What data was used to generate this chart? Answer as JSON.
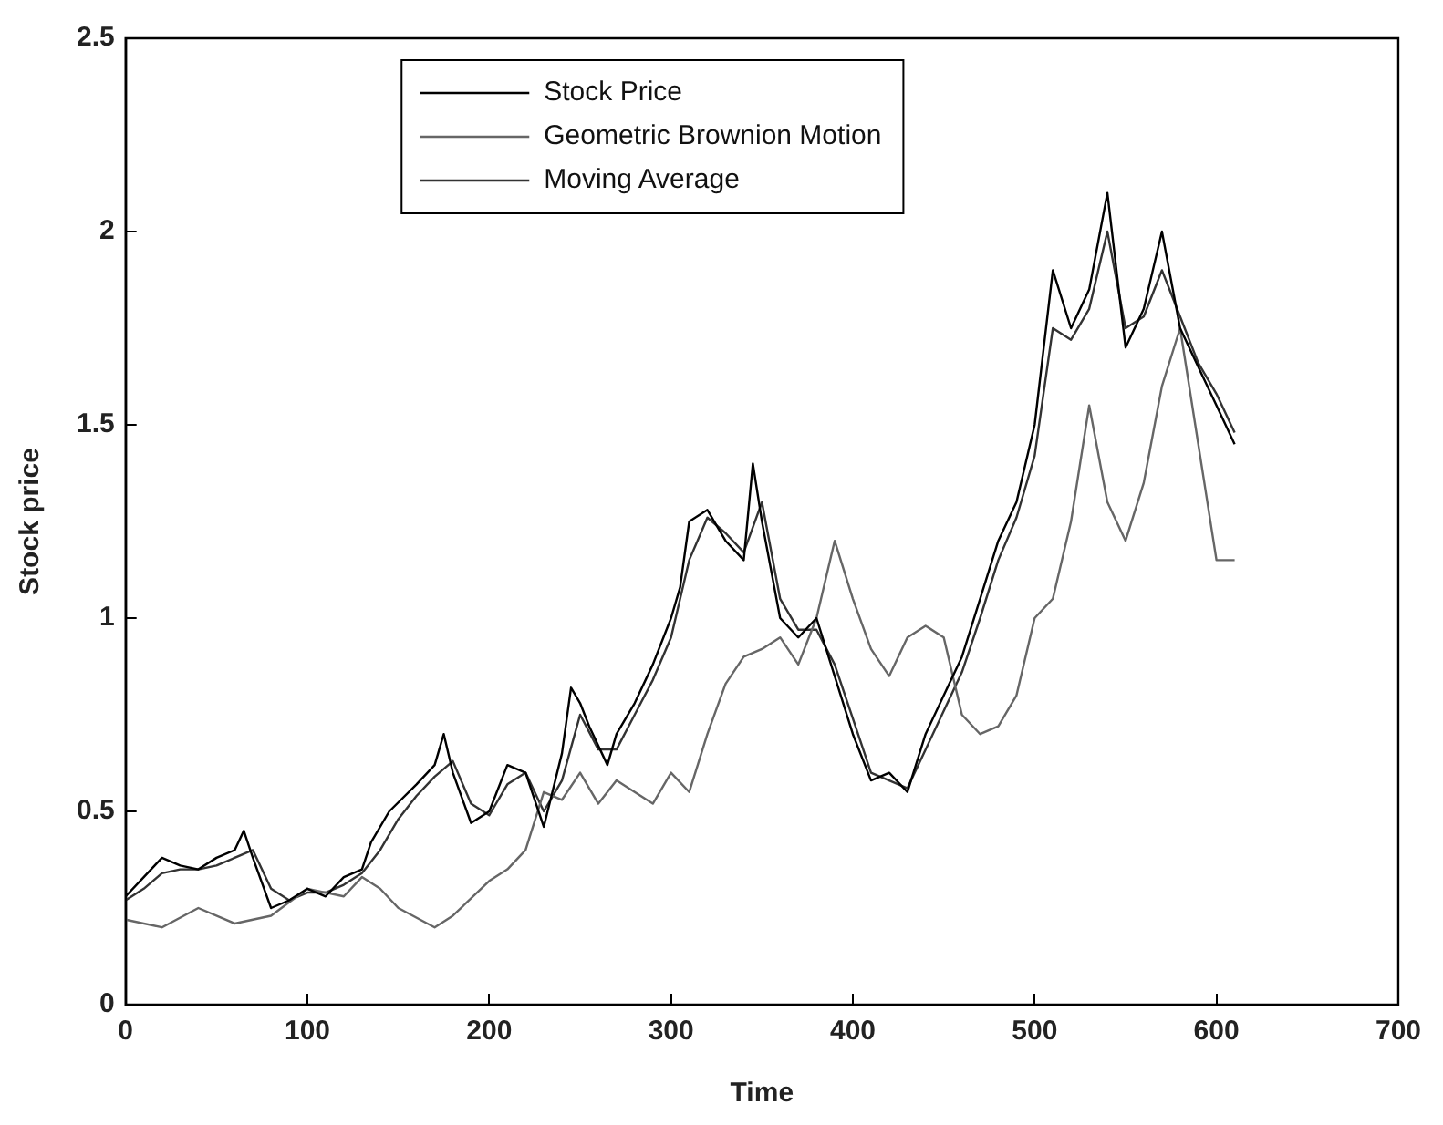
{
  "chart_data": {
    "type": "line",
    "xlabel": "Time",
    "ylabel": "Stock price",
    "xlim": [
      0,
      700
    ],
    "xticks": [
      0,
      100,
      200,
      300,
      400,
      500,
      600,
      700
    ],
    "ylim": [
      0,
      2.5
    ],
    "yticks": [
      0,
      0.5,
      1,
      1.5,
      2,
      2.5
    ],
    "grid": false,
    "legend": "top",
    "marker": "none",
    "line_style": "solid",
    "series": [
      {
        "name": "Stock Price",
        "color": "#000000",
        "x": [
          0,
          10,
          20,
          30,
          40,
          50,
          60,
          65,
          70,
          80,
          90,
          100,
          110,
          120,
          130,
          135,
          145,
          160,
          170,
          175,
          180,
          190,
          200,
          210,
          220,
          230,
          240,
          245,
          250,
          255,
          265,
          270,
          280,
          290,
          300,
          305,
          310,
          320,
          330,
          340,
          345,
          350,
          360,
          370,
          380,
          390,
          400,
          410,
          420,
          430,
          440,
          450,
          460,
          470,
          480,
          490,
          500,
          510,
          520,
          530,
          540,
          550,
          560,
          570,
          580,
          590,
          600,
          610
        ],
        "values": [
          0.28,
          0.33,
          0.38,
          0.36,
          0.35,
          0.38,
          0.4,
          0.45,
          0.38,
          0.25,
          0.27,
          0.3,
          0.28,
          0.33,
          0.35,
          0.42,
          0.5,
          0.57,
          0.62,
          0.7,
          0.6,
          0.47,
          0.5,
          0.62,
          0.6,
          0.46,
          0.65,
          0.82,
          0.78,
          0.72,
          0.62,
          0.7,
          0.78,
          0.88,
          1,
          1.08,
          1.25,
          1.28,
          1.2,
          1.15,
          1.4,
          1.25,
          1,
          0.95,
          1,
          0.85,
          0.7,
          0.58,
          0.6,
          0.55,
          0.7,
          0.8,
          0.9,
          1.05,
          1.2,
          1.3,
          1.5,
          1.9,
          1.75,
          1.85,
          2.1,
          1.7,
          1.8,
          2,
          1.75,
          1.65,
          1.55,
          1.45
        ]
      },
      {
        "name": "Geometric Brownion Motion",
        "color": "#666666",
        "x": [
          0,
          20,
          40,
          60,
          80,
          100,
          120,
          130,
          140,
          150,
          170,
          180,
          200,
          210,
          220,
          230,
          240,
          250,
          260,
          270,
          280,
          290,
          300,
          310,
          320,
          330,
          340,
          350,
          360,
          370,
          380,
          390,
          400,
          410,
          420,
          430,
          440,
          450,
          460,
          470,
          480,
          490,
          500,
          510,
          520,
          530,
          540,
          550,
          560,
          570,
          580,
          590,
          600,
          610
        ],
        "values": [
          0.22,
          0.2,
          0.25,
          0.21,
          0.23,
          0.3,
          0.28,
          0.33,
          0.3,
          0.25,
          0.2,
          0.23,
          0.32,
          0.35,
          0.4,
          0.55,
          0.53,
          0.6,
          0.52,
          0.58,
          0.55,
          0.52,
          0.6,
          0.55,
          0.7,
          0.83,
          0.9,
          0.92,
          0.95,
          0.88,
          1,
          1.2,
          1.05,
          0.92,
          0.85,
          0.95,
          0.98,
          0.95,
          0.75,
          0.7,
          0.72,
          0.8,
          1,
          1.05,
          1.25,
          1.55,
          1.3,
          1.2,
          1.35,
          1.6,
          1.75,
          1.45,
          1.15,
          1.15
        ]
      },
      {
        "name": "Moving Average",
        "color": "#333333",
        "x": [
          0,
          10,
          20,
          30,
          40,
          50,
          60,
          70,
          80,
          90,
          100,
          110,
          120,
          130,
          140,
          150,
          160,
          170,
          180,
          190,
          200,
          210,
          220,
          230,
          240,
          250,
          260,
          270,
          280,
          290,
          300,
          310,
          320,
          330,
          340,
          350,
          360,
          370,
          380,
          390,
          400,
          410,
          420,
          430,
          440,
          450,
          460,
          470,
          480,
          490,
          500,
          510,
          520,
          530,
          540,
          550,
          560,
          570,
          580,
          590,
          600,
          610
        ],
        "values": [
          0.27,
          0.3,
          0.34,
          0.35,
          0.35,
          0.36,
          0.38,
          0.4,
          0.3,
          0.27,
          0.29,
          0.29,
          0.31,
          0.34,
          0.4,
          0.48,
          0.54,
          0.59,
          0.63,
          0.52,
          0.49,
          0.57,
          0.6,
          0.5,
          0.58,
          0.75,
          0.66,
          0.66,
          0.75,
          0.84,
          0.95,
          1.15,
          1.26,
          1.22,
          1.17,
          1.3,
          1.05,
          0.97,
          0.97,
          0.88,
          0.74,
          0.6,
          0.58,
          0.56,
          0.66,
          0.76,
          0.86,
          1,
          1.15,
          1.26,
          1.42,
          1.75,
          1.72,
          1.8,
          2,
          1.75,
          1.78,
          1.9,
          1.78,
          1.66,
          1.58,
          1.48
        ]
      }
    ]
  }
}
